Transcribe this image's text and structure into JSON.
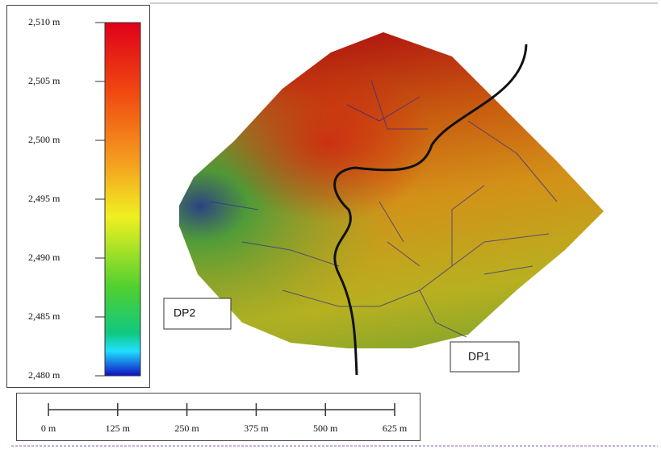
{
  "legend": {
    "ticks": [
      {
        "value": 2510,
        "label": "2,510 m"
      },
      {
        "value": 2505,
        "label": "2,505 m"
      },
      {
        "value": 2500,
        "label": "2,500 m"
      },
      {
        "value": 2495,
        "label": "2,495 m"
      },
      {
        "value": 2490,
        "label": "2,490 m"
      },
      {
        "value": 2485,
        "label": "2,485 m"
      },
      {
        "value": 2480,
        "label": "2,480 m"
      }
    ]
  },
  "scale_bar": {
    "ticks": [
      {
        "value": 0,
        "label": "0 m"
      },
      {
        "value": 125,
        "label": "125 m"
      },
      {
        "value": 250,
        "label": "250 m"
      },
      {
        "value": 375,
        "label": "375 m"
      },
      {
        "value": 500,
        "label": "500 m"
      },
      {
        "value": 625,
        "label": "625 m"
      }
    ]
  },
  "labels": {
    "dp2": "DP2",
    "dp1": "DP1"
  }
}
